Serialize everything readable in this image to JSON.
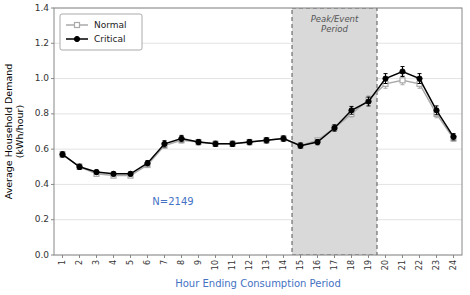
{
  "chart_data": {
    "type": "line",
    "x": [
      1,
      2,
      3,
      4,
      5,
      6,
      7,
      8,
      9,
      10,
      11,
      12,
      13,
      14,
      15,
      16,
      17,
      18,
      19,
      20,
      21,
      22,
      23,
      24
    ],
    "series": [
      {
        "name": "Normal",
        "color": "#aaaaaa",
        "marker": "square-open",
        "values": [
          0.57,
          0.5,
          0.46,
          0.45,
          0.45,
          0.51,
          0.62,
          0.65,
          0.64,
          0.63,
          0.63,
          0.64,
          0.65,
          0.66,
          0.62,
          0.65,
          0.72,
          0.8,
          0.88,
          0.97,
          0.99,
          0.97,
          0.8,
          0.66
        ],
        "errors": [
          0.015,
          0.012,
          0.01,
          0.01,
          0.01,
          0.012,
          0.015,
          0.015,
          0.012,
          0.012,
          0.012,
          0.012,
          0.012,
          0.012,
          0.012,
          0.012,
          0.015,
          0.018,
          0.022,
          0.025,
          0.025,
          0.025,
          0.022,
          0.015
        ]
      },
      {
        "name": "Critical",
        "color": "#000000",
        "marker": "circle",
        "values": [
          0.57,
          0.5,
          0.47,
          0.46,
          0.46,
          0.52,
          0.63,
          0.66,
          0.64,
          0.63,
          0.63,
          0.64,
          0.65,
          0.66,
          0.62,
          0.64,
          0.72,
          0.82,
          0.87,
          1.0,
          1.04,
          1.0,
          0.82,
          0.67
        ],
        "errors": [
          0.015,
          0.015,
          0.012,
          0.012,
          0.012,
          0.015,
          0.018,
          0.018,
          0.015,
          0.015,
          0.015,
          0.015,
          0.015,
          0.015,
          0.015,
          0.015,
          0.018,
          0.022,
          0.025,
          0.028,
          0.028,
          0.028,
          0.025,
          0.018
        ]
      }
    ],
    "xlabel": "Hour Ending Consumption Period",
    "xlabel_color": "#4472c4",
    "ylabel": "Average Household Demand\n(kWh/hour)",
    "xlim": [
      0.5,
      24.5
    ],
    "xticks": [
      1,
      2,
      3,
      4,
      5,
      6,
      7,
      8,
      9,
      10,
      11,
      12,
      13,
      14,
      15,
      16,
      17,
      18,
      19,
      20,
      21,
      22,
      23,
      24
    ],
    "ylim": [
      0.0,
      1.4
    ],
    "yticks": [
      {
        "value": 0.0,
        "label": "0.0"
      },
      0.2,
      0.4,
      0.6,
      0.8,
      {
        "value": 1.0,
        "label": "1.0"
      },
      1.2,
      1.4
    ],
    "grid": true,
    "legend": "upper left",
    "spans": [
      {
        "x0": 14.5,
        "x1": 19.5,
        "color": "#d9d9d9",
        "border_color": "#555555",
        "label": "Peak/Event\nPeriod",
        "label_color": "#555555"
      }
    ],
    "annotations": [
      {
        "text": "N=2149",
        "x": 7.5,
        "y": 0.3,
        "color": "#4472c4"
      }
    ]
  }
}
